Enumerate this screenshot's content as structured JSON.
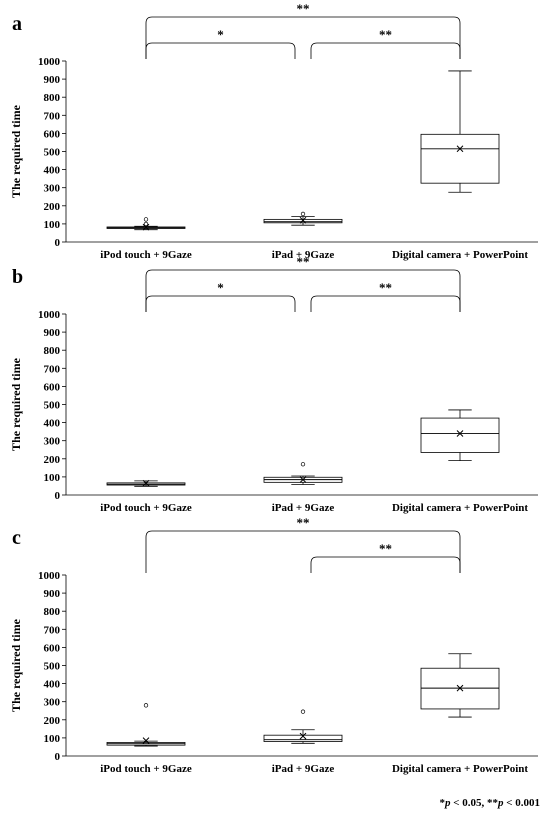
{
  "chart_data": [
    {
      "type": "box",
      "panel_label": "a",
      "ylabel": "The required time",
      "ylim": [
        0,
        1000
      ],
      "yticks": [
        0,
        100,
        200,
        300,
        400,
        500,
        600,
        700,
        800,
        900,
        1000
      ],
      "categories": [
        "iPod touch + 9Gaze",
        "iPad + 9Gaze",
        "Digital camera + PowerPoint"
      ],
      "boxes": [
        {
          "min": 68,
          "q1": 75,
          "median": 78,
          "q3": 83,
          "max": 87,
          "mean": 82,
          "outliers": [
            100,
            125
          ]
        },
        {
          "min": 93,
          "q1": 106,
          "median": 112,
          "q3": 125,
          "max": 140,
          "mean": 120,
          "outliers": [
            155
          ]
        },
        {
          "min": 275,
          "q1": 325,
          "median": 515,
          "q3": 595,
          "max": 945,
          "mean": 515,
          "outliers": []
        }
      ],
      "significance": [
        {
          "from": 0,
          "to": 2,
          "label": "**"
        },
        {
          "from": 0,
          "to": 1,
          "label": "*"
        },
        {
          "from": 1,
          "to": 2,
          "label": "**"
        }
      ]
    },
    {
      "type": "box",
      "panel_label": "b",
      "ylabel": "The required time",
      "ylim": [
        0,
        1000
      ],
      "yticks": [
        0,
        100,
        200,
        300,
        400,
        500,
        600,
        700,
        800,
        900,
        1000
      ],
      "categories": [
        "iPod touch + 9Gaze",
        "iPad + 9Gaze",
        "Digital camera + PowerPoint"
      ],
      "boxes": [
        {
          "min": 48,
          "q1": 55,
          "median": 60,
          "q3": 67,
          "max": 78,
          "mean": 65,
          "outliers": []
        },
        {
          "min": 58,
          "q1": 70,
          "median": 85,
          "q3": 98,
          "max": 105,
          "mean": 85,
          "outliers": [
            170
          ]
        },
        {
          "min": 190,
          "q1": 235,
          "median": 340,
          "q3": 425,
          "max": 470,
          "mean": 340,
          "outliers": []
        }
      ],
      "significance": [
        {
          "from": 0,
          "to": 2,
          "label": "**"
        },
        {
          "from": 0,
          "to": 1,
          "label": "*"
        },
        {
          "from": 1,
          "to": 2,
          "label": "**"
        }
      ]
    },
    {
      "type": "box",
      "panel_label": "c",
      "ylabel": "The required time",
      "ylim": [
        0,
        1000
      ],
      "yticks": [
        0,
        100,
        200,
        300,
        400,
        500,
        600,
        700,
        800,
        900,
        1000
      ],
      "categories": [
        "iPod touch + 9Gaze",
        "iPad + 9Gaze",
        "Digital camera + PowerPoint"
      ],
      "boxes": [
        {
          "min": 55,
          "q1": 60,
          "median": 68,
          "q3": 75,
          "max": 82,
          "mean": 85,
          "outliers": [
            280
          ]
        },
        {
          "min": 70,
          "q1": 80,
          "median": 90,
          "q3": 115,
          "max": 145,
          "mean": 110,
          "outliers": [
            245
          ]
        },
        {
          "min": 215,
          "q1": 260,
          "median": 375,
          "q3": 485,
          "max": 565,
          "mean": 375,
          "outliers": []
        }
      ],
      "significance": [
        {
          "from": 0,
          "to": 2,
          "label": "**"
        },
        {
          "from": 1,
          "to": 2,
          "label": "**"
        }
      ]
    }
  ],
  "footnote": {
    "part1_sym": "*",
    "part1_p": "p",
    "part1_rest": " < 0.05, ",
    "part2_sym": "**",
    "part2_p": "p",
    "part2_rest": " < 0.001"
  }
}
